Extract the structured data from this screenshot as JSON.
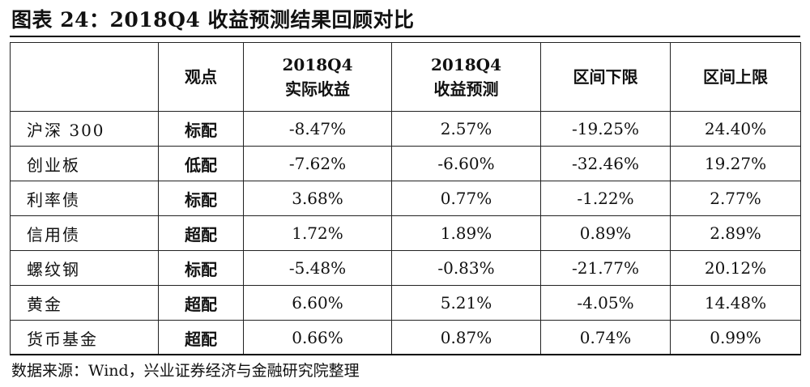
{
  "title": "图表 24：2018Q4 收益预测结果回顾对比",
  "table": {
    "headers": {
      "asset": "",
      "view": "观点",
      "actual_line1": "2018Q4",
      "actual_line2": "实际收益",
      "forecast_line1": "2018Q4",
      "forecast_line2": "收益预测",
      "lower": "区间下限",
      "upper": "区间上限"
    },
    "rows": [
      {
        "asset": "沪深 300",
        "view": "标配",
        "actual": "-8.47%",
        "forecast": "2.57%",
        "lower": "-19.25%",
        "upper": "24.40%"
      },
      {
        "asset": "创业板",
        "view": "低配",
        "actual": "-7.62%",
        "forecast": "-6.60%",
        "lower": "-32.46%",
        "upper": "19.27%"
      },
      {
        "asset": "利率债",
        "view": "标配",
        "actual": "3.68%",
        "forecast": "0.77%",
        "lower": "-1.22%",
        "upper": "2.77%"
      },
      {
        "asset": "信用债",
        "view": "超配",
        "actual": "1.72%",
        "forecast": "1.89%",
        "lower": "0.89%",
        "upper": "2.89%"
      },
      {
        "asset": "螺纹钢",
        "view": "标配",
        "actual": "-5.48%",
        "forecast": "-0.83%",
        "lower": "-21.77%",
        "upper": "20.12%"
      },
      {
        "asset": "黄金",
        "view": "超配",
        "actual": "6.60%",
        "forecast": "5.21%",
        "lower": "-4.05%",
        "upper": "14.48%"
      },
      {
        "asset": "货币基金",
        "view": "超配",
        "actual": "0.66%",
        "forecast": "0.87%",
        "lower": "0.74%",
        "upper": "0.99%"
      }
    ]
  },
  "source": "数据来源：Wind，兴业证券经济与金融研究院整理"
}
